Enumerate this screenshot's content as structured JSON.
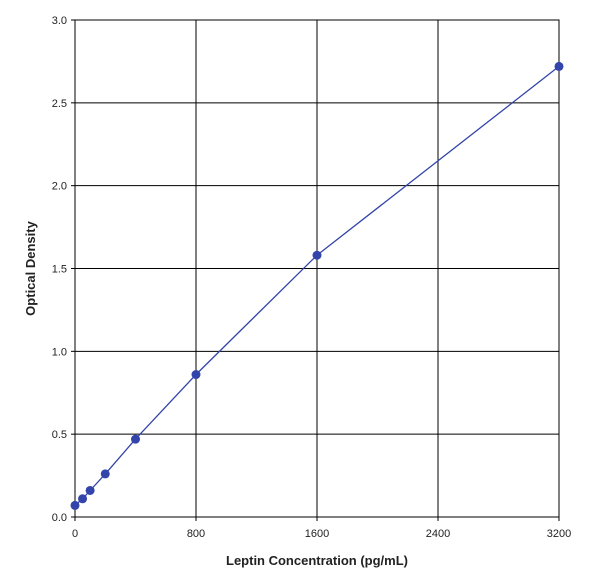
{
  "chart_data": {
    "type": "line",
    "title": "",
    "xlabel": "Leptin Concentration (pg/mL)",
    "ylabel": "Optical Density",
    "xlim": [
      0,
      3200
    ],
    "ylim": [
      0,
      3.0
    ],
    "x_ticks": [
      0,
      800,
      1600,
      2400,
      3200
    ],
    "x_tick_labels": [
      "0",
      "800",
      "1600",
      "2400",
      "3200"
    ],
    "y_ticks": [
      0,
      0.5,
      1.0,
      1.5,
      2.0,
      2.5,
      3.0
    ],
    "y_tick_labels": [
      "0.0",
      "0.5",
      "1.0",
      "1.5",
      "2.0",
      "2.5",
      "3.0"
    ],
    "grid": true,
    "legend": "none",
    "series": [
      {
        "x": [
          0,
          50,
          100,
          200,
          400,
          800,
          1600,
          3200
        ],
        "y": [
          0.07,
          0.11,
          0.16,
          0.26,
          0.47,
          0.86,
          1.58,
          2.72
        ],
        "color": "#3344aa",
        "marker": "circle"
      }
    ]
  }
}
